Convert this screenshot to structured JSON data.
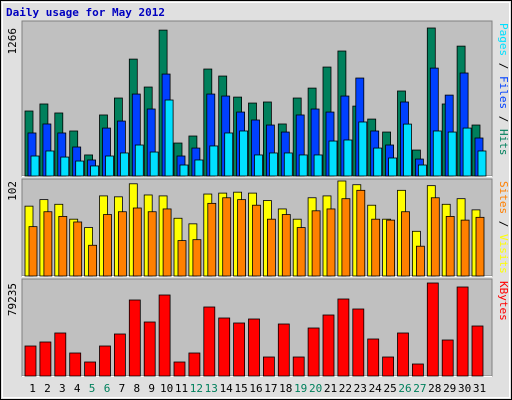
{
  "chart_data": [
    {
      "type": "bar",
      "title": "Daily usage for May 2012",
      "legend_separator": " / ",
      "ylim": [
        0,
        1266
      ],
      "yticks": [
        1266
      ],
      "grid": false,
      "series": [
        {
          "name": "Hits",
          "color": "#00805c",
          "values": [
            556,
            616,
            539,
            385,
            180,
            522,
            667,
            1000,
            761,
            1248,
            282,
            342,
            915,
            855,
            675,
            624,
            633,
            445,
            667,
            752,
            932,
            1069,
            598,
            487,
            376,
            727,
            222,
            1266,
            616,
            1111,
            436
          ]
        },
        {
          "name": "Files",
          "color": "#0040ff",
          "values": [
            368,
            445,
            368,
            248,
            137,
            410,
            470,
            701,
            573,
            872,
            171,
            239,
            701,
            684,
            547,
            479,
            436,
            376,
            522,
            573,
            547,
            684,
            838,
            385,
            265,
            633,
            145,
            923,
            692,
            881,
            325
          ]
        },
        {
          "name": "Pages",
          "color": "#00e0ff",
          "values": [
            171,
            214,
            162,
            128,
            86,
            171,
            197,
            265,
            205,
            650,
            94,
            137,
            257,
            368,
            385,
            180,
            197,
            197,
            180,
            180,
            299,
            308,
            462,
            239,
            154,
            444,
            94,
            385,
            376,
            410,
            214
          ]
        }
      ]
    },
    {
      "type": "bar",
      "legend_separator": " / ",
      "ylim": [
        0,
        102
      ],
      "yticks": [
        102
      ],
      "grid": false,
      "series": [
        {
          "name": "Visits",
          "color": "#ffff00",
          "values": [
            75,
            82,
            77,
            61,
            52,
            86,
            85,
            99,
            87,
            86,
            62,
            56,
            88,
            89,
            90,
            89,
            81,
            72,
            61,
            84,
            86,
            102,
            98,
            76,
            61,
            92,
            48,
            97,
            77,
            83,
            71
          ]
        },
        {
          "name": "Sites",
          "color": "#ff8000",
          "values": [
            53,
            69,
            64,
            58,
            33,
            66,
            69,
            73,
            69,
            72,
            38,
            39,
            78,
            84,
            82,
            76,
            61,
            66,
            52,
            70,
            72,
            83,
            92,
            61,
            60,
            69,
            32,
            84,
            64,
            60,
            63
          ]
        }
      ]
    },
    {
      "type": "bar",
      "ylim": [
        0,
        79235
      ],
      "yticks": [
        79235
      ],
      "grid": false,
      "categories": [
        "1",
        "2",
        "3",
        "4",
        "5",
        "6",
        "7",
        "8",
        "9",
        "10",
        "11",
        "12",
        "13",
        "14",
        "15",
        "16",
        "17",
        "18",
        "19",
        "20",
        "21",
        "22",
        "23",
        "24",
        "25",
        "26",
        "27",
        "28",
        "29",
        "30",
        "31"
      ],
      "category_colors": [
        "#000000",
        "#000000",
        "#000000",
        "#000000",
        "#00805c",
        "#00805c",
        "#000000",
        "#000000",
        "#000000",
        "#000000",
        "#000000",
        "#00805c",
        "#00805c",
        "#000000",
        "#000000",
        "#000000",
        "#000000",
        "#000000",
        "#00805c",
        "#00805c",
        "#000000",
        "#000000",
        "#000000",
        "#000000",
        "#000000",
        "#00805c",
        "#00805c",
        "#000000",
        "#000000",
        "#000000",
        "#000000"
      ],
      "series": [
        {
          "name": "KBytes",
          "color": "#ff0000",
          "values": [
            25560,
            28968,
            36636,
            19596,
            11928,
            25560,
            35784,
            64752,
            46008,
            69012,
            11928,
            19596,
            58788,
            49416,
            45156,
            48564,
            16188,
            44304,
            16188,
            40896,
            51972,
            65604,
            57084,
            31524,
            16188,
            36636,
            10224,
            79235,
            30672,
            75828,
            42600
          ]
        }
      ]
    }
  ]
}
